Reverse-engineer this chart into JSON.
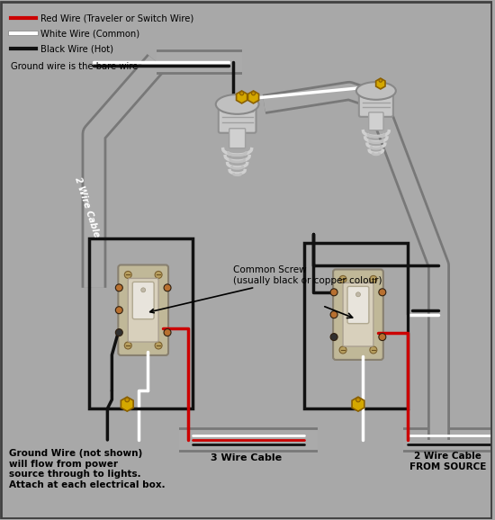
{
  "bg_color": "#a8a8a8",
  "legend": [
    {
      "label": "Red Wire (Traveler or Switch Wire)",
      "color": "#cc0000",
      "lw": 3
    },
    {
      "label": "White Wire (Common)",
      "color": "#ffffff",
      "lw": 3
    },
    {
      "label": "Black Wire (Hot)",
      "color": "#111111",
      "lw": 3
    }
  ],
  "ground_note": "Ground wire is the bare wire",
  "bottom_left_text": "Ground Wire (not shown)\nwill flow from power\nsource through to lights.\nAttach at each electrical box.",
  "label_3wire": "3 Wire Cable",
  "label_2wire_src": "2 Wire Cable\nFROM SOURCE",
  "label_2wire_top": "2 Wire Cable",
  "label_common_screw": "Common Screw\n(usually black or copper colour)",
  "wire_red": "#cc0000",
  "wire_white": "#ffffff",
  "wire_black": "#111111",
  "wire_gray": "#888888",
  "wire_gray_dark": "#606060",
  "wire_yellow": "#d4a800",
  "cable_gray": "#909090",
  "cable_lw": 18
}
